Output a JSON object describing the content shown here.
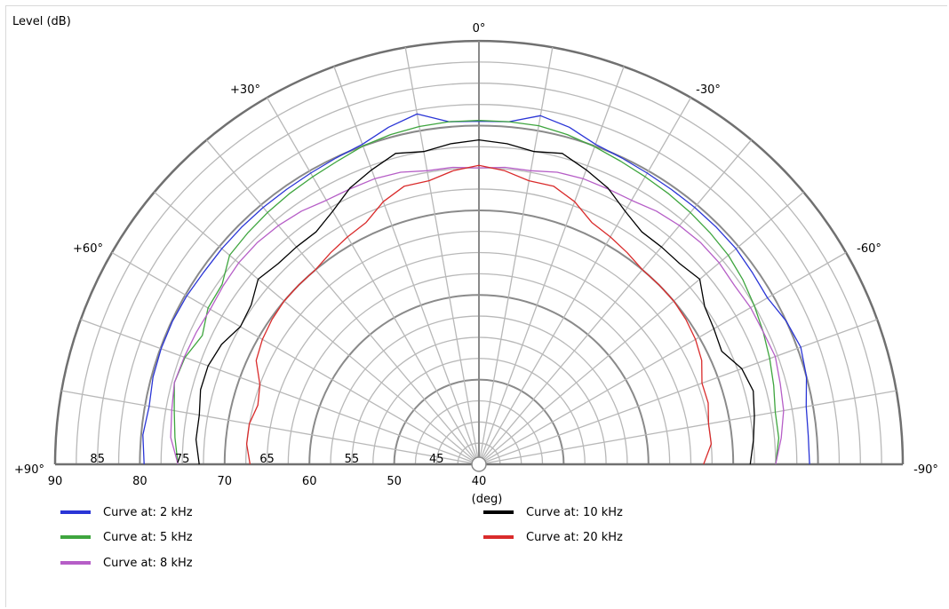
{
  "chart_data": {
    "type": "polar-half",
    "ylabel": "Level  (dB)",
    "xlabel": "(deg)",
    "rlim": [
      40,
      90
    ],
    "r_ticks": [
      90,
      80,
      70,
      60,
      50,
      40
    ],
    "r_minor_ticks": [
      85,
      75,
      65,
      55,
      45
    ],
    "angle_labels": [
      {
        "deg": 0,
        "text": "0°"
      },
      {
        "deg": 30,
        "text": "+30°"
      },
      {
        "deg": -30,
        "text": "-30°"
      },
      {
        "deg": 60,
        "text": "+60°"
      },
      {
        "deg": -60,
        "text": "-60°"
      },
      {
        "deg": 90,
        "text": "+90°"
      },
      {
        "deg": -90,
        "text": "-90°"
      }
    ],
    "angles": [
      90,
      85,
      80,
      75,
      70,
      65,
      60,
      55,
      50,
      45,
      40,
      35,
      30,
      25,
      20,
      15,
      10,
      5,
      0,
      -5,
      -10,
      -15,
      -20,
      -25,
      -30,
      -35,
      -40,
      -45,
      -50,
      -55,
      -60,
      -65,
      -70,
      -75,
      -80,
      -85,
      -90
    ],
    "series": [
      {
        "name": "Curve at: 2 kHz",
        "color": "#2a35d6",
        "values": [
          79.5,
          79.8,
          79.5,
          79.8,
          79.9,
          79.9,
          79.8,
          79.6,
          79.6,
          79.6,
          79.6,
          79.6,
          79.7,
          79.9,
          80.2,
          81.2,
          82.0,
          80.6,
          80.5,
          80.6,
          81.8,
          81.2,
          80.2,
          79.9,
          79.7,
          79.6,
          79.6,
          79.6,
          79.6,
          79.4,
          79.3,
          80.0,
          80.4,
          80.0,
          79.2,
          79.0,
          79.0
        ]
      },
      {
        "name": "Curve at: 5 kHz",
        "color": "#3ea53e",
        "values": [
          75.5,
          76.0,
          76.5,
          77.2,
          76.9,
          76.0,
          76.9,
          77.0,
          78.4,
          78.6,
          78.8,
          79.0,
          79.2,
          79.5,
          80.0,
          80.3,
          80.5,
          80.6,
          80.6,
          80.6,
          80.6,
          80.3,
          79.9,
          79.5,
          79.2,
          79.0,
          78.8,
          78.6,
          78.4,
          78.0,
          77.5,
          77.0,
          76.5,
          76.0,
          75.5,
          75.5,
          75.0
        ]
      },
      {
        "name": "Curve at: 8 kHz",
        "color": "#b65ec7",
        "values": [
          75.5,
          76.5,
          76.8,
          77.2,
          77.0,
          76.8,
          76.6,
          76.8,
          77.0,
          77.0,
          76.8,
          76.5,
          76.0,
          75.9,
          75.9,
          75.7,
          75.2,
          75.2,
          75.0,
          75.2,
          75.2,
          75.7,
          75.9,
          75.9,
          76.0,
          76.5,
          76.8,
          77.0,
          77.0,
          76.8,
          77.0,
          77.0,
          77.2,
          76.8,
          76.5,
          75.8,
          75.0
        ]
      },
      {
        "name": "Curve at: 10 kHz",
        "color": "#000000",
        "values": [
          73.0,
          73.5,
          73.5,
          74.0,
          74.0,
          73.5,
          72.5,
          72.8,
          74.0,
          73.5,
          73.5,
          73.5,
          74.5,
          76.0,
          77.0,
          78.0,
          77.5,
          78.0,
          78.3,
          78.0,
          77.5,
          78.0,
          77.0,
          76.0,
          74.5,
          73.5,
          73.5,
          73.5,
          74.0,
          72.5,
          72.0,
          71.6,
          73.0,
          73.5,
          73.0,
          72.5,
          72.0
        ]
      },
      {
        "name": "Curve at: 20 kHz",
        "color": "#d92b2b",
        "values": [
          67.0,
          67.5,
          67.5,
          67.0,
          67.5,
          69.0,
          69.5,
          69.8,
          70.0,
          70.0,
          70.0,
          70.5,
          71.0,
          71.5,
          73.0,
          74.0,
          74.0,
          74.8,
          75.3,
          74.8,
          74.0,
          74.0,
          73.0,
          71.5,
          71.0,
          70.5,
          70.0,
          70.0,
          70.0,
          69.8,
          69.5,
          69.0,
          68.0,
          68.0,
          67.5,
          67.5,
          66.5
        ]
      }
    ],
    "legend_position": "bottom"
  }
}
